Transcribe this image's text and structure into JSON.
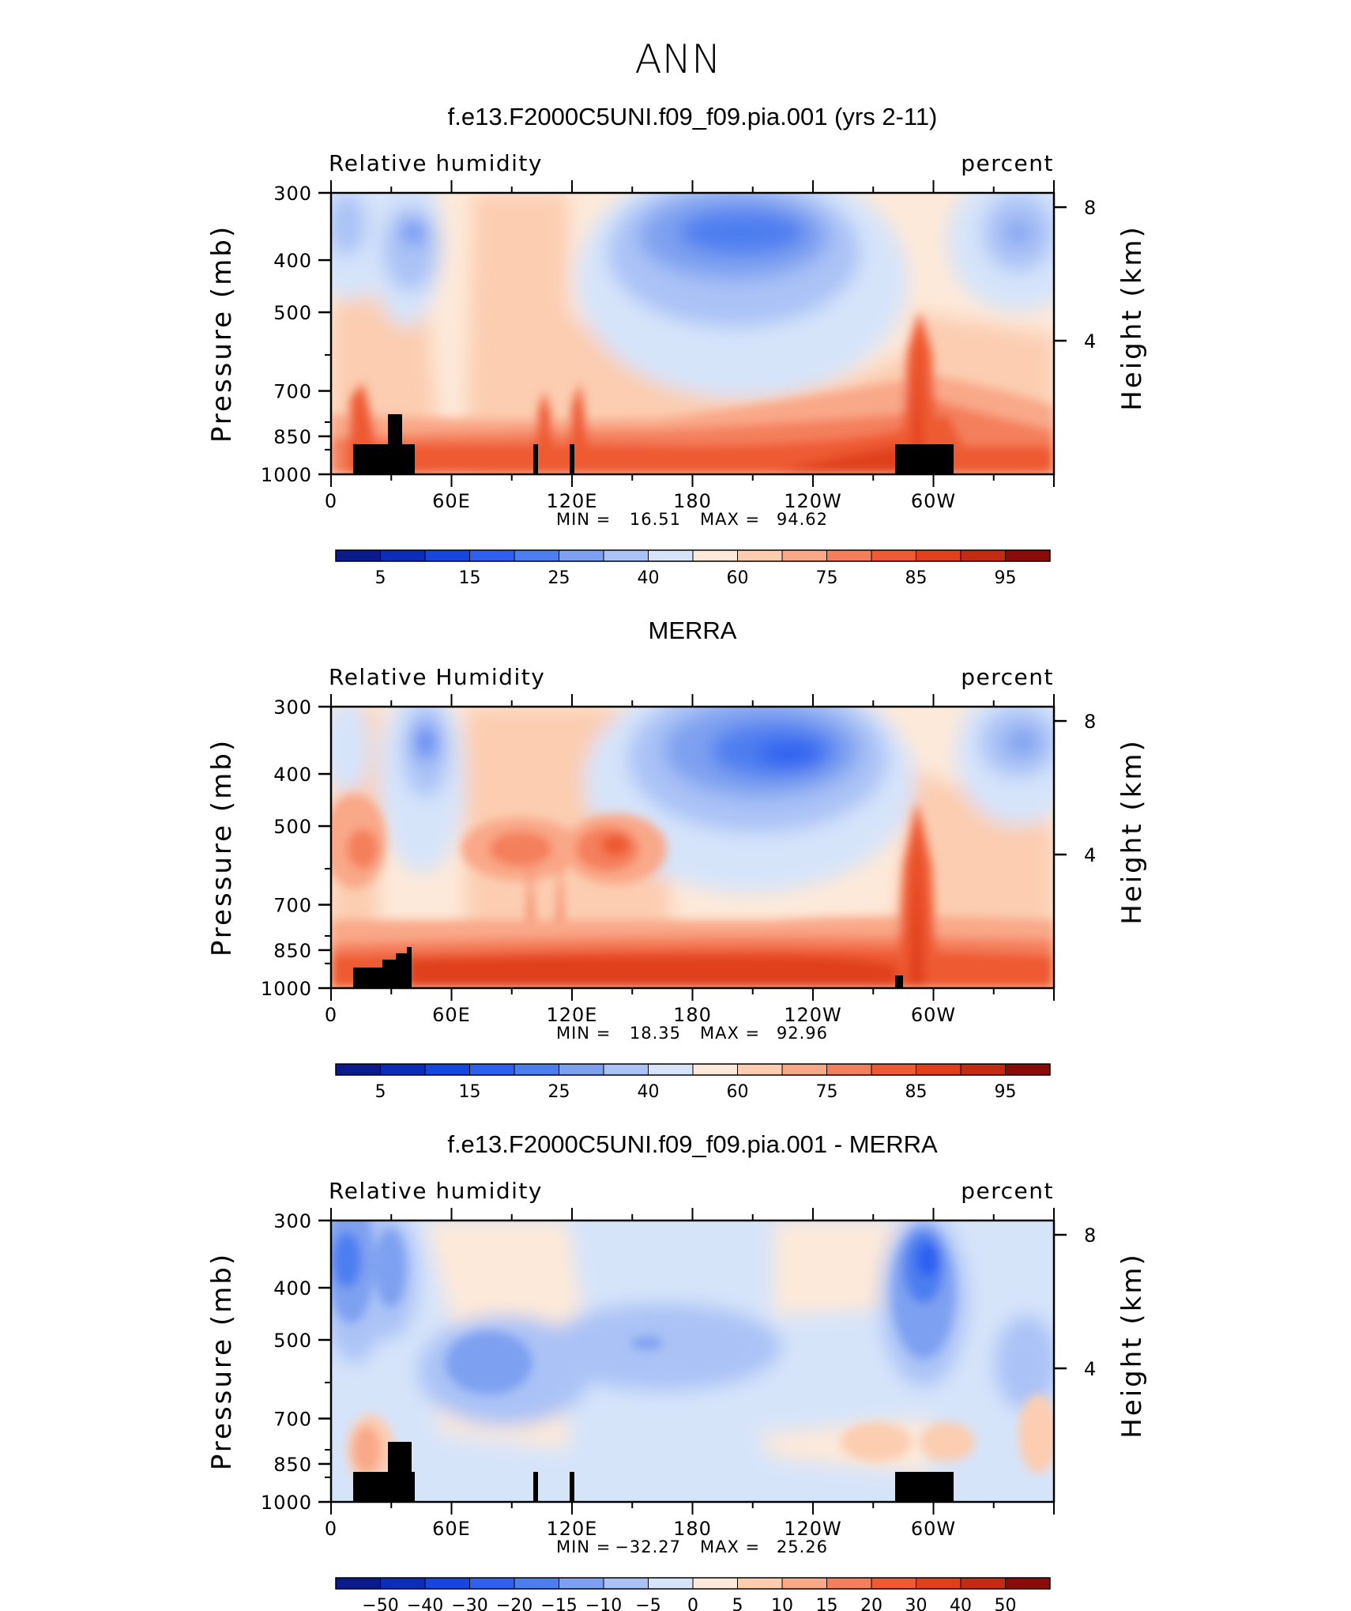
{
  "page": {
    "season": "ANN"
  },
  "chart_data": [
    {
      "type": "contour",
      "title": "f.e13.F2000C5UNI.f09_f09.pia.001 (yrs 2-11)",
      "variable_label": "Relative humidity",
      "units_label": "percent",
      "ylabel": "Pressure (mb)",
      "ylabel_right": "Height (km)",
      "y_ticks": [
        "300",
        "400",
        "500",
        "700",
        "850",
        "1000"
      ],
      "y_ticks_right": [
        "8",
        "4"
      ],
      "x_ticks": [
        "0",
        "60E",
        "120E",
        "180",
        "120W",
        "60W"
      ],
      "min_label": "MIN =",
      "min_value": "16.51",
      "max_label": "MAX =",
      "max_value": "94.62",
      "colorbar_labels": [
        "5",
        "15",
        "25",
        "40",
        "60",
        "75",
        "85",
        "95"
      ],
      "colorbar_colors": [
        "#0a1b8c",
        "#0c2db8",
        "#1745e0",
        "#2f60f0",
        "#4d7ef0",
        "#7ea0f0",
        "#aac2f6",
        "#d6e4fa",
        "#fde9d9",
        "#fccdb1",
        "#f9a888",
        "#f47f5c",
        "#ee5a33",
        "#e0401c",
        "#c32c12",
        "#8b0a0a"
      ]
    },
    {
      "type": "contour",
      "title": "MERRA",
      "variable_label": "Relative Humidity",
      "units_label": "percent",
      "ylabel": "Pressure (mb)",
      "ylabel_right": "Height (km)",
      "y_ticks": [
        "300",
        "400",
        "500",
        "700",
        "850",
        "1000"
      ],
      "y_ticks_right": [
        "8",
        "4"
      ],
      "x_ticks": [
        "0",
        "60E",
        "120E",
        "180",
        "120W",
        "60W"
      ],
      "min_label": "MIN =",
      "min_value": "18.35",
      "max_label": "MAX =",
      "max_value": "92.96",
      "colorbar_labels": [
        "5",
        "15",
        "25",
        "40",
        "60",
        "75",
        "85",
        "95"
      ],
      "colorbar_colors": [
        "#0a1b8c",
        "#0c2db8",
        "#1745e0",
        "#2f60f0",
        "#4d7ef0",
        "#7ea0f0",
        "#aac2f6",
        "#d6e4fa",
        "#fde9d9",
        "#fccdb1",
        "#f9a888",
        "#f47f5c",
        "#ee5a33",
        "#e0401c",
        "#c32c12",
        "#8b0a0a"
      ]
    },
    {
      "type": "contour",
      "title": "f.e13.F2000C5UNI.f09_f09.pia.001 - MERRA",
      "variable_label": "Relative humidity",
      "units_label": "percent",
      "ylabel": "Pressure (mb)",
      "ylabel_right": "Height (km)",
      "y_ticks": [
        "300",
        "400",
        "500",
        "700",
        "850",
        "1000"
      ],
      "y_ticks_right": [
        "8",
        "4"
      ],
      "x_ticks": [
        "0",
        "60E",
        "120E",
        "180",
        "120W",
        "60W"
      ],
      "min_label": "MIN =",
      "min_value": "−32.27",
      "max_label": "MAX =",
      "max_value": "25.26",
      "colorbar_labels": [
        "−50",
        "−40",
        "−30",
        "−20",
        "−15",
        "−10",
        "−5",
        "0",
        "5",
        "10",
        "15",
        "20",
        "30",
        "40",
        "50"
      ],
      "colorbar_colors": [
        "#0a1b8c",
        "#0c2db8",
        "#1745e0",
        "#2f60f0",
        "#4d7ef0",
        "#7ea0f0",
        "#aac2f6",
        "#d6e4fa",
        "#fde9d9",
        "#fccdb1",
        "#f9a888",
        "#f47f5c",
        "#ee5a33",
        "#e0401c",
        "#c32c12",
        "#8b0a0a"
      ]
    }
  ]
}
